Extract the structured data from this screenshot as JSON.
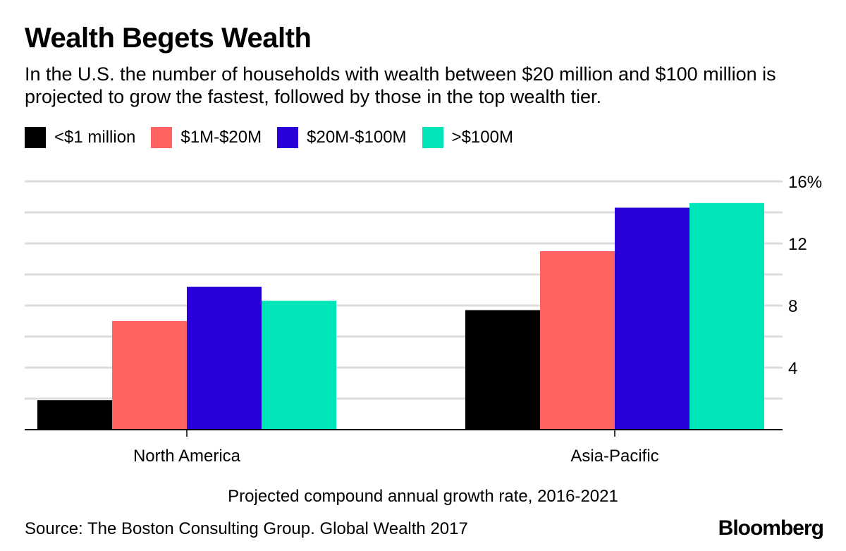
{
  "title": "Wealth Begets Wealth",
  "subtitle": "In the U.S. the number of households with wealth between $20 million and $100 million is projected to grow the fastest, followed by those in the top wealth tier.",
  "source": "Source: The Boston Consulting Group. Global Wealth 2017",
  "logo": "Bloomberg",
  "chart_data": {
    "type": "bar",
    "categories": [
      "North America",
      "Asia-Pacific"
    ],
    "series": [
      {
        "name": "<$1 million",
        "color": "#000000",
        "values": [
          1.9,
          7.7
        ]
      },
      {
        "name": "$1M-$20M",
        "color": "#ff6361",
        "values": [
          7.0,
          11.5
        ]
      },
      {
        "name": "$20M-$100M",
        "color": "#2800d7",
        "values": [
          9.2,
          14.3
        ]
      },
      {
        "name": ">$100M",
        "color": "#00e5b7",
        "values": [
          8.3,
          14.6
        ]
      }
    ],
    "xlabel": "Projected compound annual growth rate, 2016-2021",
    "ylim": [
      0,
      16
    ],
    "yticks": [
      {
        "v": 4,
        "label": "4"
      },
      {
        "v": 8,
        "label": "8"
      },
      {
        "v": 12,
        "label": "12"
      },
      {
        "v": 16,
        "label": "16%"
      }
    ],
    "grid": true,
    "yaxis_side": "right",
    "legend": "top-left"
  }
}
